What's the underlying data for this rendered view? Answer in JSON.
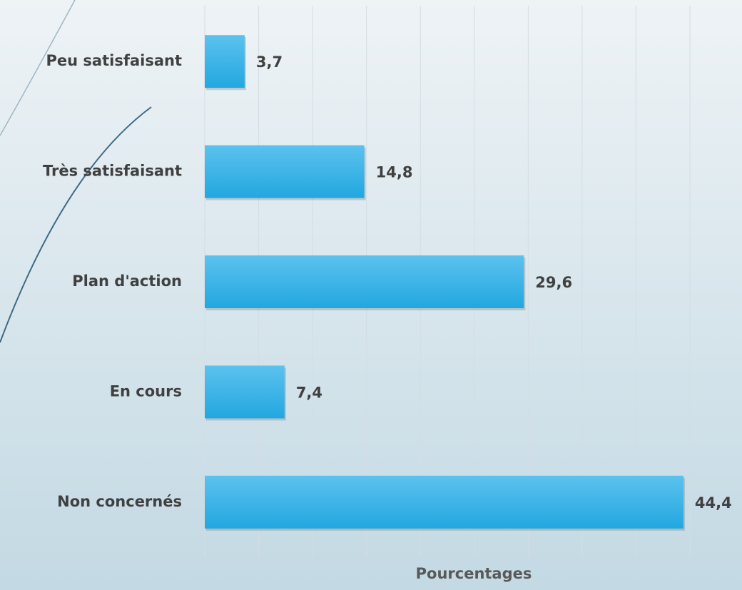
{
  "chart_data": {
    "type": "bar",
    "orientation": "horizontal",
    "categories": [
      "Peu satisfaisant",
      "Très satisfaisant",
      "Plan d'action",
      "En cours",
      "Non concernés"
    ],
    "values": [
      3.7,
      14.8,
      29.6,
      7.4,
      44.4
    ],
    "value_labels": [
      "3,7",
      "14,8",
      "29,6",
      "7,4",
      "44,4"
    ],
    "color": "#22a7e0",
    "xlabel": "Pourcentages",
    "xlim": [
      0,
      45
    ],
    "xticks": [
      0,
      5,
      10,
      15,
      20,
      25,
      30,
      35,
      40,
      45
    ],
    "tick_labels": false,
    "grid": true
  }
}
